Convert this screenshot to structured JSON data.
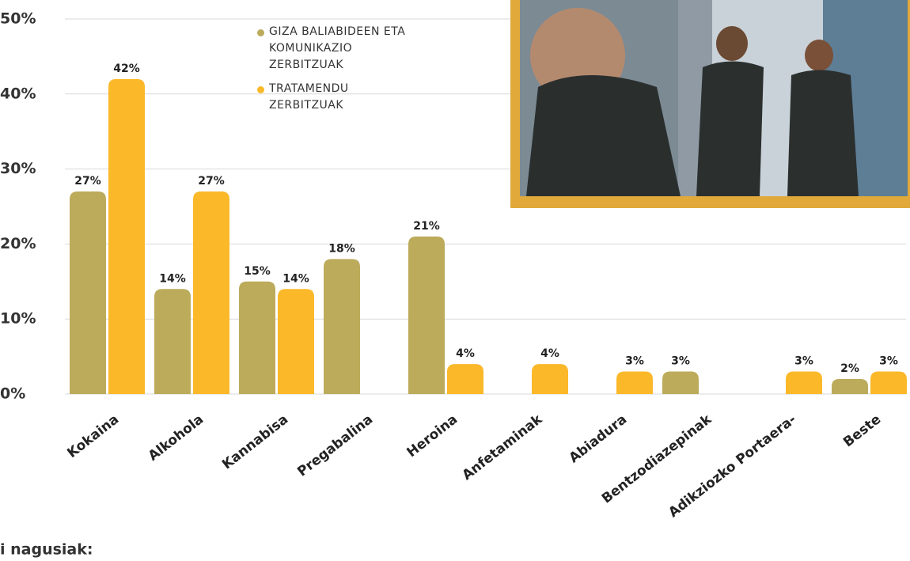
{
  "chart_data": {
    "type": "bar",
    "categories": [
      "Kokaina",
      "Alkohola",
      "Kannabisa",
      "Pregabalina",
      "Heroina",
      "Anfetaminak",
      "Abiadura",
      "Bentzodiazepinak",
      "Adikziozko Portaera-",
      "Beste"
    ],
    "series": [
      {
        "name": "GIZA BALIABIDEEN ETA KOMUNIKAZIO ZERBITZUAK",
        "color": "#bcab5b",
        "values": [
          27,
          14,
          15,
          18,
          21,
          null,
          null,
          3,
          null,
          2
        ],
        "value_labels": [
          "27%",
          "14%",
          "15%",
          "18%",
          "21%",
          null,
          null,
          "3%",
          null,
          "2%"
        ]
      },
      {
        "name": "TRATAMENDU ZERBITZUAK",
        "color": "#fbb829",
        "values": [
          42,
          27,
          14,
          null,
          4,
          4,
          3,
          null,
          3,
          3
        ],
        "value_labels": [
          "42%",
          "27%",
          "14%",
          null,
          "4%",
          "4%",
          "3%",
          null,
          "3%",
          "3%"
        ]
      }
    ],
    "ylim": [
      0,
      50
    ],
    "yticks": [
      {
        "value": 0,
        "label": "0%"
      },
      {
        "value": 10,
        "label": "10%"
      },
      {
        "value": 20,
        "label": "20%"
      },
      {
        "value": 30,
        "label": "30%"
      },
      {
        "value": 40,
        "label": "40%"
      },
      {
        "value": 50,
        "label": "50%"
      }
    ],
    "grid": true
  },
  "footer_text": "i nagusiak:"
}
